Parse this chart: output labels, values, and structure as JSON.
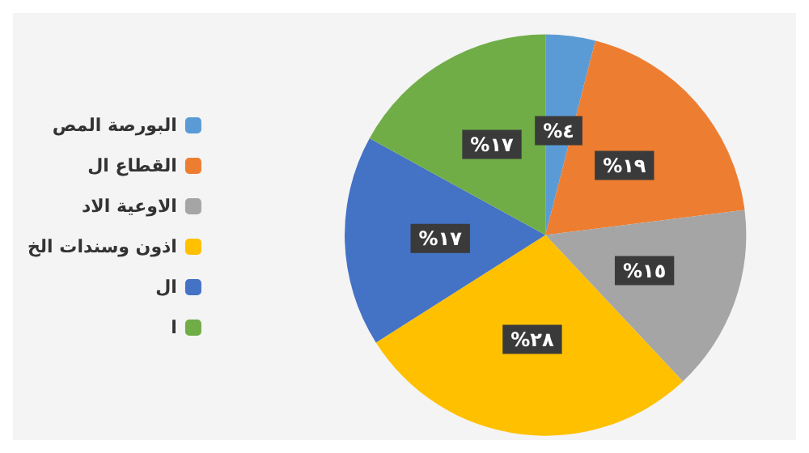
{
  "chart_data": {
    "type": "pie",
    "categories": [
      "البورصة المص",
      "القطاع ال",
      "الاوعية الاد",
      "اذون وسندات الخ",
      "ال",
      "ا"
    ],
    "values": [
      4,
      19,
      15,
      28,
      17,
      17
    ],
    "colors": [
      "#5b9bd5",
      "#ed7d31",
      "#a5a5a5",
      "#ffc000",
      "#4472c4",
      "#70ad47"
    ],
    "value_labels": [
      "%٤",
      "%١٩",
      "%١٥",
      "%٢٨",
      "%١٧",
      "%١٧"
    ],
    "legend": "left"
  }
}
